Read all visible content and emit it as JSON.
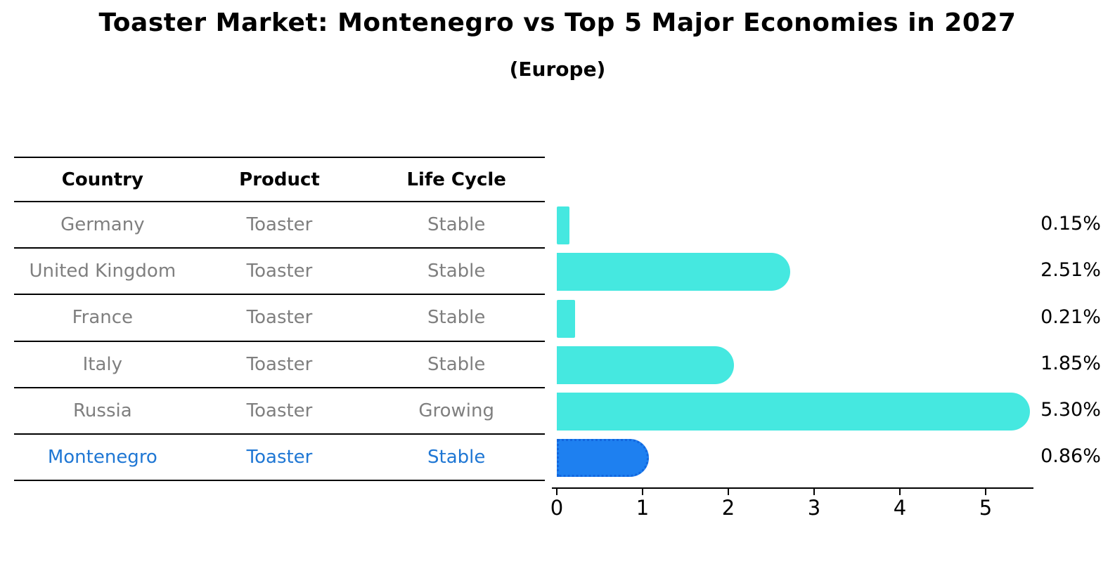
{
  "title": "Toaster Market: Montenegro vs Top 5 Major Economies in 2027",
  "subtitle": "(Europe)",
  "table": {
    "columns": [
      "Country",
      "Product",
      "Life Cycle"
    ],
    "rows": [
      {
        "country": "Germany",
        "product": "Toaster",
        "life_cycle": "Stable",
        "highlight": false
      },
      {
        "country": "United Kingdom",
        "product": "Toaster",
        "life_cycle": "Stable",
        "highlight": false
      },
      {
        "country": "France",
        "product": "Toaster",
        "life_cycle": "Stable",
        "highlight": false
      },
      {
        "country": "Italy",
        "product": "Toaster",
        "life_cycle": "Stable",
        "highlight": false
      },
      {
        "country": "Russia",
        "product": "Toaster",
        "life_cycle": "Growing",
        "highlight": false
      },
      {
        "country": "Montenegro",
        "product": "Toaster",
        "life_cycle": "Stable",
        "highlight": true
      }
    ]
  },
  "chart_data": {
    "type": "bar",
    "orientation": "horizontal",
    "categories": [
      "Germany",
      "United Kingdom",
      "France",
      "Italy",
      "Russia",
      "Montenegro"
    ],
    "values": [
      0.15,
      2.51,
      0.21,
      1.85,
      5.3,
      0.86
    ],
    "value_labels": [
      "0.15%",
      "2.51%",
      "0.21%",
      "1.85%",
      "5.30%",
      "0.86%"
    ],
    "highlight_index": 5,
    "x_ticks": [
      "0",
      "1",
      "2",
      "3",
      "4",
      "5"
    ],
    "xlim": [
      0,
      5.56
    ],
    "grid": false,
    "legend": null,
    "bar_color": "#45e8e0",
    "highlight_bar_color": "#1e80f0",
    "highlight_border_color": "#1266de",
    "highlight_text_color": "#1f77d4",
    "table_text_color": "#7f7f7f",
    "axis_color": "#000000"
  }
}
